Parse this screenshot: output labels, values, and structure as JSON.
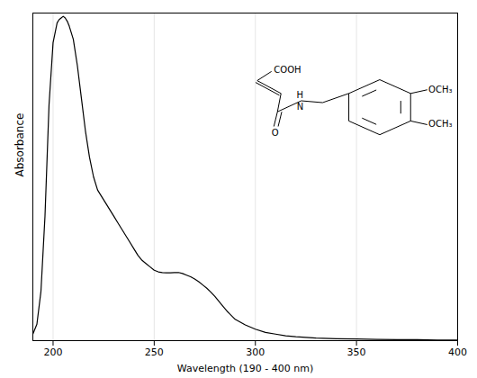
{
  "chart_data": {
    "type": "line",
    "xlabel": "Wavelength (190 - 400 nm)",
    "ylabel": "Absorbance",
    "x": [
      190,
      192,
      194,
      196,
      198,
      200,
      202,
      203,
      204,
      205,
      206,
      207,
      208,
      210,
      212,
      214,
      216,
      218,
      220,
      222,
      224,
      226,
      228,
      230,
      232,
      234,
      236,
      238,
      240,
      242,
      244,
      246,
      248,
      250,
      252,
      254,
      256,
      258,
      260,
      262,
      264,
      266,
      268,
      270,
      272,
      274,
      276,
      278,
      280,
      282,
      284,
      286,
      290,
      295,
      300,
      305,
      310,
      315,
      320,
      330,
      340,
      350,
      360,
      370,
      380,
      390,
      400
    ],
    "values": [
      0.02,
      0.05,
      0.15,
      0.38,
      0.72,
      0.91,
      0.97,
      0.98,
      0.985,
      0.99,
      0.985,
      0.975,
      0.96,
      0.92,
      0.84,
      0.74,
      0.64,
      0.56,
      0.5,
      0.46,
      0.44,
      0.42,
      0.4,
      0.38,
      0.36,
      0.34,
      0.32,
      0.3,
      0.28,
      0.26,
      0.245,
      0.235,
      0.225,
      0.215,
      0.21,
      0.208,
      0.207,
      0.207,
      0.208,
      0.208,
      0.205,
      0.2,
      0.195,
      0.188,
      0.18,
      0.17,
      0.16,
      0.148,
      0.135,
      0.12,
      0.105,
      0.09,
      0.065,
      0.048,
      0.035,
      0.025,
      0.02,
      0.015,
      0.012,
      0.008,
      0.006,
      0.005,
      0.004,
      0.003,
      0.003,
      0.002,
      0.002
    ],
    "color": "#000000",
    "xlim": [
      190,
      400
    ],
    "ylim": [
      0,
      1.0
    ],
    "xticks": [
      200,
      250,
      300,
      350,
      400
    ],
    "yticks": [],
    "grid": true,
    "tick_labels": "x",
    "annotations": [
      "OCH₃",
      "OCH₃",
      "H",
      "N",
      "O",
      "COOH"
    ]
  }
}
